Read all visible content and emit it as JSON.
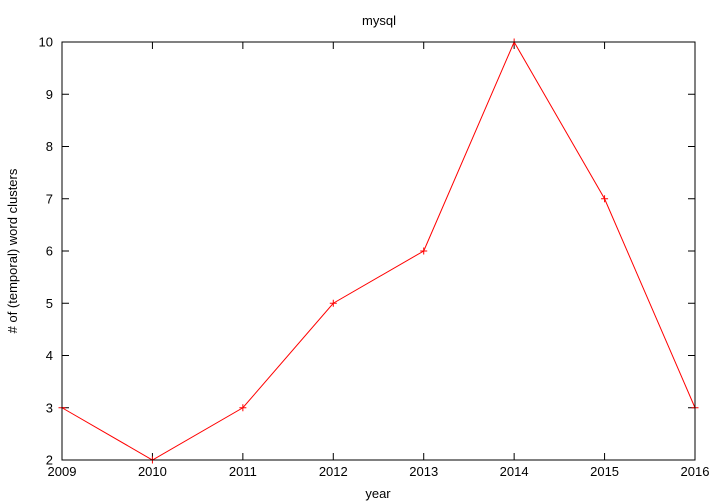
{
  "chart_data": {
    "type": "line",
    "title": "mysql",
    "xlabel": "year",
    "ylabel": "# of (temporal) word clusters",
    "x": [
      2009,
      2010,
      2011,
      2012,
      2013,
      2014,
      2015,
      2016
    ],
    "xlim": [
      2009,
      2016
    ],
    "ylim": [
      2,
      10
    ],
    "xticks": [
      "2009",
      "2010",
      "2011",
      "2012",
      "2013",
      "2014",
      "2015",
      "2016"
    ],
    "yticks": [
      "2",
      "3",
      "4",
      "5",
      "6",
      "7",
      "8",
      "9",
      "10"
    ],
    "grid": false,
    "legend": "none",
    "series": [
      {
        "values": [
          3,
          2,
          3,
          5,
          6,
          10,
          7,
          3
        ],
        "color": "#ff0000",
        "marker": "plus"
      }
    ]
  }
}
